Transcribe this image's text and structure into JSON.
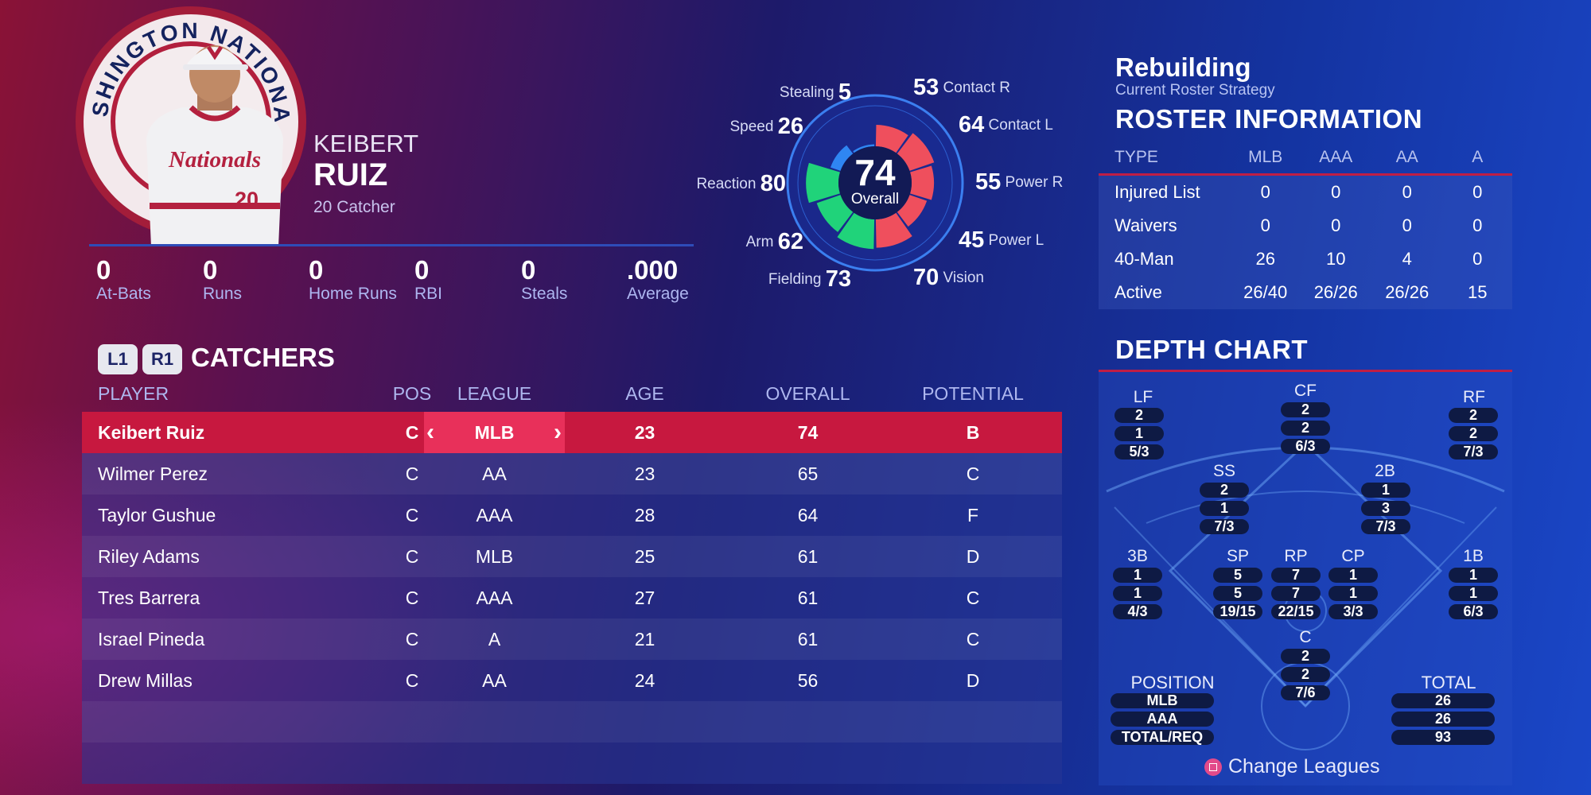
{
  "player": {
    "team_logo_text": "WASHINGTON NATIONALS",
    "first_name": "KEIBERT",
    "last_name": "RUIZ",
    "number_position": "20  Catcher",
    "jersey_text": "Nationals",
    "jersey_number": "20"
  },
  "season_stats": [
    {
      "value": "0",
      "label": "At-Bats"
    },
    {
      "value": "0",
      "label": "Runs"
    },
    {
      "value": "0",
      "label": "Home Runs"
    },
    {
      "value": "0",
      "label": "RBI"
    },
    {
      "value": "0",
      "label": "Steals"
    },
    {
      "value": ".000",
      "label": "Average"
    }
  ],
  "ratings": {
    "overall_value": "74",
    "overall_label": "Overall",
    "attributes": [
      {
        "label": "Stealing",
        "value": "5"
      },
      {
        "label": "Contact R",
        "value": "53"
      },
      {
        "label": "Speed",
        "value": "26"
      },
      {
        "label": "Contact L",
        "value": "64"
      },
      {
        "label": "Reaction",
        "value": "80"
      },
      {
        "label": "Power R",
        "value": "55"
      },
      {
        "label": "Arm",
        "value": "62"
      },
      {
        "label": "Power L",
        "value": "45"
      },
      {
        "label": "Fielding",
        "value": "73"
      },
      {
        "label": "Vision",
        "value": "70"
      }
    ],
    "colors": {
      "hitting": "#ef4f5d",
      "fielding": "#20d37a",
      "running": "#2f86f2"
    }
  },
  "roster": {
    "strategy": "Rebuilding",
    "strategy_caption": "Current Roster Strategy",
    "title": "ROSTER INFORMATION",
    "headers": [
      "TYPE",
      "MLB",
      "AAA",
      "AA",
      "A"
    ],
    "rows": [
      [
        "Injured List",
        "0",
        "0",
        "0",
        "0"
      ],
      [
        "Waivers",
        "0",
        "0",
        "0",
        "0"
      ],
      [
        "40-Man",
        "26",
        "10",
        "4",
        "0"
      ],
      [
        "Active",
        "26/40",
        "26/26",
        "26/26",
        "15"
      ]
    ]
  },
  "catchers": {
    "l1": "L1",
    "r1": "R1",
    "title": "CATCHERS",
    "headers": {
      "player": "PLAYER",
      "pos": "POS",
      "league": "LEAGUE",
      "age": "AGE",
      "overall": "OVERALL",
      "potential": "POTENTIAL"
    },
    "rows": [
      {
        "player": "Keibert Ruiz",
        "pos": "C",
        "league": "MLB",
        "age": "23",
        "overall": "74",
        "potential": "B"
      },
      {
        "player": "Wilmer Perez",
        "pos": "C",
        "league": "AA",
        "age": "23",
        "overall": "65",
        "potential": "C"
      },
      {
        "player": "Taylor Gushue",
        "pos": "C",
        "league": "AAA",
        "age": "28",
        "overall": "64",
        "potential": "F"
      },
      {
        "player": "Riley Adams",
        "pos": "C",
        "league": "MLB",
        "age": "25",
        "overall": "61",
        "potential": "D"
      },
      {
        "player": "Tres Barrera",
        "pos": "C",
        "league": "AAA",
        "age": "27",
        "overall": "61",
        "potential": "C"
      },
      {
        "player": "Israel Pineda",
        "pos": "C",
        "league": "A",
        "age": "21",
        "overall": "61",
        "potential": "C"
      },
      {
        "player": "Drew Millas",
        "pos": "C",
        "league": "AA",
        "age": "24",
        "overall": "56",
        "potential": "D"
      }
    ],
    "arrow_left": "‹",
    "arrow_right": "›"
  },
  "depth_chart": {
    "title": "DEPTH CHART",
    "positions": {
      "LF": [
        "2",
        "1",
        "5/3"
      ],
      "CF": [
        "2",
        "2",
        "6/3"
      ],
      "RF": [
        "2",
        "2",
        "7/3"
      ],
      "SS": [
        "2",
        "1",
        "7/3"
      ],
      "2B": [
        "1",
        "3",
        "7/3"
      ],
      "3B": [
        "1",
        "1",
        "4/3"
      ],
      "SP": [
        "5",
        "5",
        "19/15"
      ],
      "RP": [
        "7",
        "7",
        "22/15"
      ],
      "CP": [
        "1",
        "1",
        "3/3"
      ],
      "1B": [
        "1",
        "1",
        "6/3"
      ],
      "C": [
        "2",
        "2",
        "7/6"
      ]
    },
    "position_header": "POSITION",
    "total_header": "TOTAL",
    "summary": [
      {
        "label": "MLB",
        "total": "26"
      },
      {
        "label": "AAA",
        "total": "26"
      },
      {
        "label": "TOTAL/REQ",
        "total": "93"
      }
    ],
    "change_leagues": "Change Leagues"
  }
}
